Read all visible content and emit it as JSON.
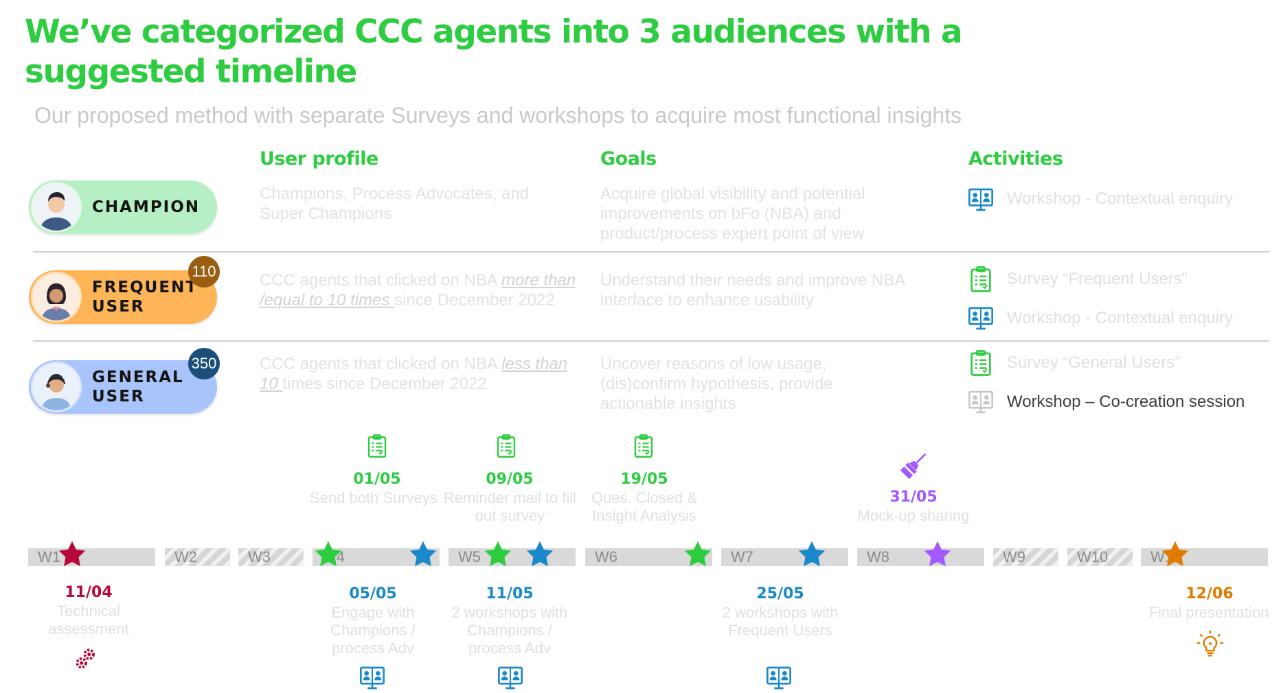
{
  "title": "We’ve categorized CCC agents into 3 audiences with a suggested timeline",
  "subtitle": "Our proposed method with separate Surveys and workshops to acquire most functional insights",
  "columns": {
    "profile": "User profile",
    "goals": "Goals",
    "activities": "Activities"
  },
  "audiences": [
    {
      "name": "CHAMPION",
      "name_line2": "",
      "badge": "",
      "color": "#b7efc5",
      "profile": [
        "Champions, Process Advocates, and Super Champions"
      ],
      "goals": "Acquire global visibility and potential improvements on bFo (NBA) and product/process expert point of view",
      "activities": [
        {
          "icon": "workshop-icon",
          "text": "Workshop - Contextual enquiry"
        }
      ]
    },
    {
      "name": "FREQUENT",
      "name_line2": "USER",
      "badge": "110",
      "color": "#fdb557",
      "badge_color": "#9b5d10",
      "profile": [
        "CCC agents that clicked on NBA ",
        "more than /equal to 10 times ",
        "since December 2022"
      ],
      "goals": "Understand their needs and improve NBA interface to enhance usability",
      "activities": [
        {
          "icon": "survey-icon",
          "text": "Survey “Frequent Users”"
        },
        {
          "icon": "workshop-icon",
          "text": "Workshop - Contextual enquiry"
        }
      ]
    },
    {
      "name": "GENERAL",
      "name_line2": "USER",
      "badge": "350",
      "color": "#a9c4fb",
      "badge_color": "#1b4f7a",
      "profile": [
        "CCC agents that clicked on NBA ",
        "less than 10 ",
        "times since December 2022"
      ],
      "goals": "Uncover reasons of low usage, (dis)confirm hypothesis, provide actionable insights",
      "activities": [
        {
          "icon": "survey-icon",
          "text": "Survey “General Users”"
        },
        {
          "icon": "workshop-icon",
          "text": "Workshop – Co-creation session"
        }
      ]
    }
  ],
  "weeks": [
    "W1",
    "W2",
    "W3",
    "W4",
    "W5",
    "W6",
    "W7",
    "W8",
    "W9",
    "W10",
    "W11"
  ],
  "milestones_above": [
    {
      "date": "01/05",
      "desc": "Send both Surveys",
      "color": "#2ecc40",
      "icon": "survey-icon"
    },
    {
      "date": "09/05",
      "desc": "Reminder mail to fill out survey",
      "color": "#2ecc40",
      "icon": "survey-icon"
    },
    {
      "date": "19/05",
      "desc": "Ques. Closed & Insight Analysis",
      "color": "#2ecc40",
      "icon": "survey-icon"
    },
    {
      "date": "31/05",
      "desc": "Mock-up sharing",
      "color": "#a259ff",
      "icon": "brush-icon"
    }
  ],
  "milestones_below": [
    {
      "date": "11/04",
      "desc": "Technical assessment",
      "color": "#b5093b",
      "icon": "gears-icon"
    },
    {
      "date": "05/05",
      "desc": "Engage with Champions / process Adv",
      "color": "#1a88c9",
      "icon": "workshop-icon"
    },
    {
      "date": "11/05",
      "desc": "2 workshops with Champions / process Adv",
      "color": "#1a88c9",
      "icon": "workshop-icon"
    },
    {
      "date": "25/05",
      "desc": "2 workshops with Frequent Users",
      "color": "#1a88c9",
      "icon": "workshop-icon"
    },
    {
      "date": "12/06",
      "desc": "Final presentation",
      "color": "#e07b00",
      "icon": "lightbulb-icon"
    }
  ],
  "colors": {
    "green": "#2ecc40",
    "blue": "#1a88c9",
    "purple": "#a259ff",
    "crimson": "#b5093b",
    "orange": "#e07b00"
  }
}
